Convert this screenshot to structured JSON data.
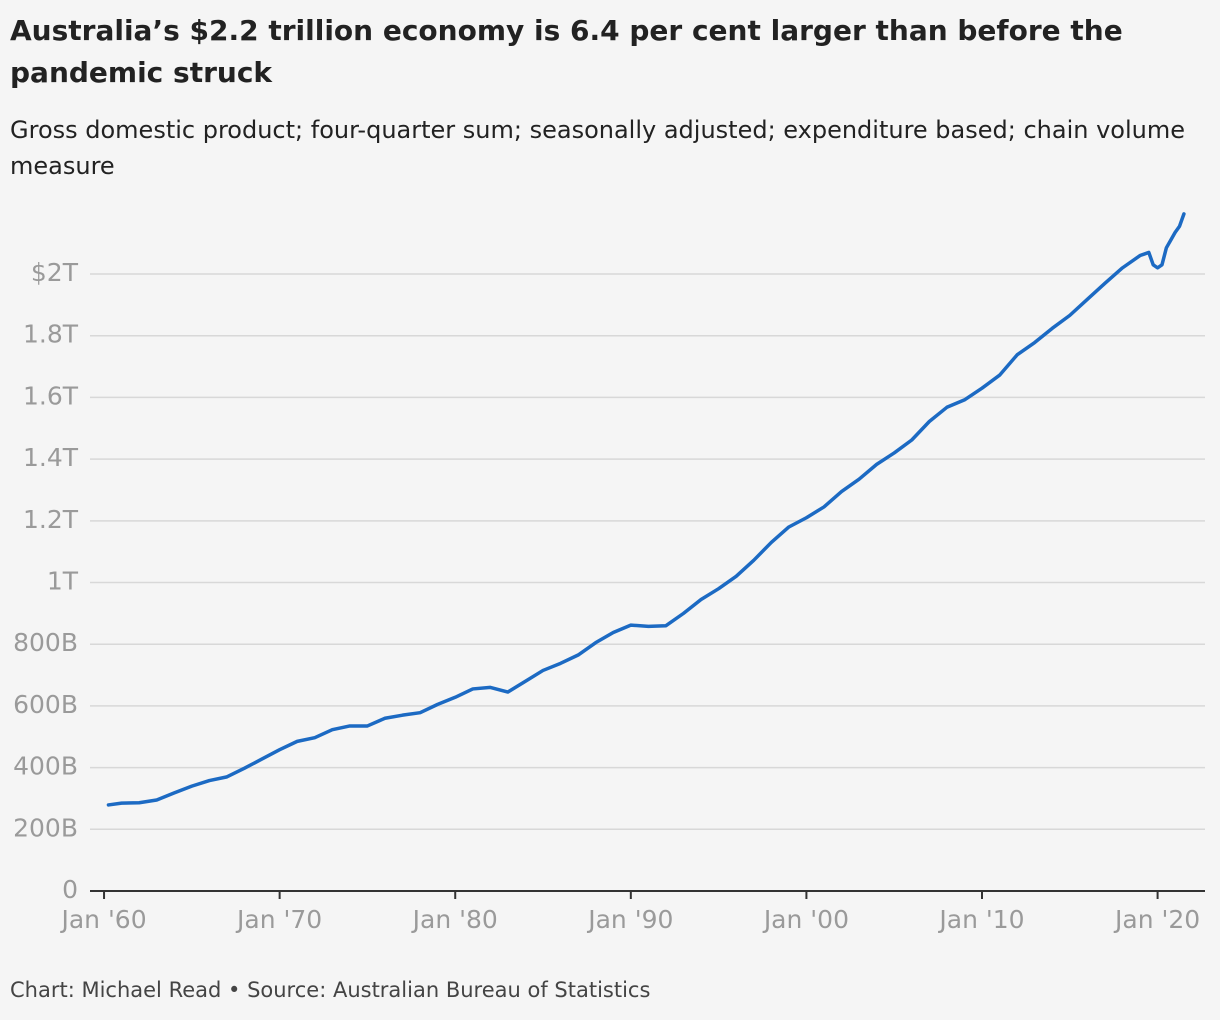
{
  "chart_data": {
    "type": "line",
    "title": "Australia’s $2.2 trillion economy is 6.4 per cent larger than before the pandemic struck",
    "subtitle": "Gross domestic product; four-quarter sum; seasonally adjusted; expenditure based; chain volume measure",
    "footer": "Chart: Michael Read • Source: Australian Bureau of Statistics",
    "x": [
      1960.25,
      1961,
      1962,
      1963,
      1964,
      1965,
      1966,
      1967,
      1968,
      1969,
      1970,
      1971,
      1972,
      1973,
      1974,
      1975,
      1976,
      1977,
      1978,
      1979,
      1980,
      1981,
      1982,
      1983,
      1984,
      1985,
      1986,
      1987,
      1988,
      1989,
      1990,
      1991,
      1992,
      1993,
      1994,
      1995,
      1996,
      1997,
      1998,
      1999,
      2000,
      2001,
      2002,
      2003,
      2004,
      2005,
      2006,
      2007,
      2008,
      2009,
      2010,
      2011,
      2012,
      2013,
      2014,
      2015,
      2016,
      2017,
      2018,
      2019,
      2019.5,
      2019.75,
      2020,
      2020.25,
      2020.5,
      2020.75,
      2021,
      2021.25,
      2021.5
    ],
    "series": [
      {
        "name": "GDP",
        "color": "#1c6ac3",
        "values": [
          279000000000.0,
          285000000000.0,
          286000000000.0,
          295000000000.0,
          318000000000.0,
          340000000000.0,
          358000000000.0,
          370000000000.0,
          398000000000.0,
          428000000000.0,
          458000000000.0,
          485000000000.0,
          497000000000.0,
          523000000000.0,
          535000000000.0,
          535000000000.0,
          560000000000.0,
          570000000000.0,
          578000000000.0,
          605000000000.0,
          628000000000.0,
          655000000000.0,
          660000000000.0,
          645000000000.0,
          680000000000.0,
          715000000000.0,
          738000000000.0,
          765000000000.0,
          805000000000.0,
          838000000000.0,
          862000000000.0,
          858000000000.0,
          860000000000.0,
          900000000000.0,
          945000000000.0,
          980000000000.0,
          1020000000000.0,
          1072000000000.0,
          1130000000000.0,
          1180000000000.0,
          1210000000000.0,
          1245000000000.0,
          1295000000000.0,
          1335000000000.0,
          1383000000000.0,
          1420000000000.0,
          1462000000000.0,
          1522000000000.0,
          1568000000000.0,
          1592000000000.0,
          1630000000000.0,
          1672000000000.0,
          1738000000000.0,
          1778000000000.0,
          1824000000000.0,
          1866000000000.0,
          1918000000000.0,
          1970000000000.0,
          2020000000000.0,
          2060000000000.0,
          2070000000000.0,
          2030000000000.0,
          2020000000000.0,
          2030000000000.0,
          2085000000000.0,
          2110000000000.0,
          2135000000000.0,
          2155000000000.0,
          2195000000000.0
        ]
      }
    ],
    "xlim": [
      1959.2,
      2022.7
    ],
    "xticks": [
      {
        "value": 1960,
        "label": "Jan '60"
      },
      {
        "value": 1970,
        "label": "Jan '70"
      },
      {
        "value": 1980,
        "label": "Jan '80"
      },
      {
        "value": 1990,
        "label": "Jan '90"
      },
      {
        "value": 2000,
        "label": "Jan '00"
      },
      {
        "value": 2010,
        "label": "Jan '10"
      },
      {
        "value": 2020,
        "label": "Jan '20"
      }
    ],
    "ylim": [
      0,
      2240000000000.0
    ],
    "yticks": [
      0,
      {
        "value": 200000000000.0,
        "label": "200B"
      },
      {
        "value": 400000000000.0,
        "label": "400B"
      },
      {
        "value": 600000000000.0,
        "label": "600B"
      },
      {
        "value": 800000000000.0,
        "label": "800B"
      },
      {
        "value": 1000000000000.0,
        "label": "1T"
      },
      {
        "value": 1200000000000.0,
        "label": "1.2T"
      },
      {
        "value": 1400000000000.0,
        "label": "1.4T"
      },
      {
        "value": 1600000000000.0,
        "label": "1.6T"
      },
      {
        "value": 1800000000000.0,
        "label": "1.8T"
      },
      {
        "value": 2000000000000.0,
        "label": "$2T"
      }
    ],
    "grid": true
  }
}
